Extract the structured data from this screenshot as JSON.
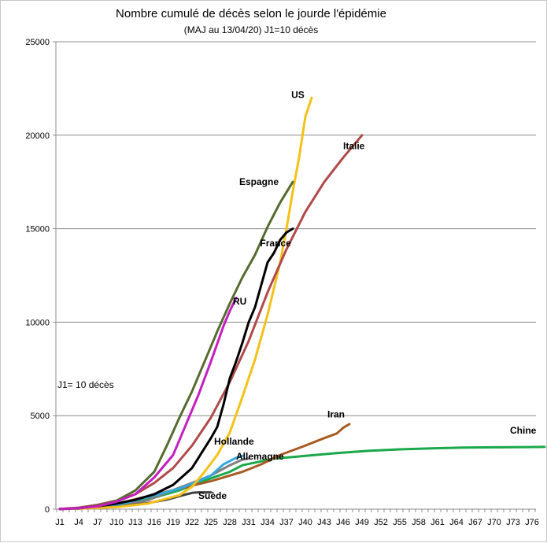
{
  "chart_data": {
    "type": "line",
    "title": "Nombre cumulé de décès selon le jourde l'épidémie",
    "subtitle": "(MAJ au 13/04/20) J1=10 décès",
    "annotation": "J1= 10 décès",
    "xlabel": "",
    "ylabel": "",
    "x_range": [
      1,
      78
    ],
    "ylim": [
      0,
      25000
    ],
    "yticks": [
      0,
      5000,
      10000,
      15000,
      20000,
      25000
    ],
    "xticks": [
      "J1",
      "J4",
      "J7",
      "J10",
      "J13",
      "J16",
      "J19",
      "J22",
      "J25",
      "J28",
      "J31",
      "J34",
      "J37",
      "J40",
      "J43",
      "J46",
      "J49",
      "J52",
      "J55",
      "J58",
      "J61",
      "J64",
      "J67",
      "J70",
      "J73",
      "J76"
    ],
    "xtick_days": [
      1,
      4,
      7,
      10,
      13,
      16,
      19,
      22,
      25,
      28,
      31,
      34,
      37,
      40,
      43,
      46,
      49,
      52,
      55,
      58,
      61,
      64,
      67,
      70,
      73,
      76
    ],
    "grid": "horizontal",
    "legend": "none (labels placed next to curves)",
    "series": [
      {
        "name": "Chine",
        "color": "#1aa84a",
        "x": [
          1,
          5,
          10,
          15,
          20,
          25,
          28,
          30,
          35,
          40,
          45,
          50,
          55,
          60,
          65,
          70,
          75,
          78
        ],
        "y": [
          10,
          60,
          200,
          520,
          1010,
          1650,
          2000,
          2350,
          2700,
          2850,
          3000,
          3120,
          3200,
          3250,
          3290,
          3310,
          3320,
          3330
        ]
      },
      {
        "name": "Iran",
        "color": "#a85c24",
        "x": [
          1,
          5,
          10,
          15,
          20,
          25,
          30,
          33,
          36,
          40,
          43,
          45,
          46,
          47
        ],
        "y": [
          10,
          60,
          280,
          700,
          1100,
          1500,
          2000,
          2400,
          2900,
          3400,
          3800,
          4050,
          4350,
          4550
        ]
      },
      {
        "name": "Allemagne",
        "color": "#7f7f7f",
        "x": [
          1,
          5,
          10,
          15,
          19,
          22,
          25,
          28,
          30,
          31
        ],
        "y": [
          10,
          40,
          150,
          480,
          1020,
          1400,
          1800,
          2350,
          2650,
          2700
        ]
      },
      {
        "name": "Hollande",
        "color": "#33aadd",
        "x": [
          1,
          5,
          10,
          15,
          20,
          22,
          25,
          27,
          29,
          30
        ],
        "y": [
          10,
          50,
          200,
          650,
          1100,
          1350,
          1800,
          2400,
          2750,
          2850
        ]
      },
      {
        "name": "Suède",
        "color": "#404040",
        "x": [
          1,
          5,
          10,
          15,
          18,
          20,
          22,
          23,
          25
        ],
        "y": [
          10,
          40,
          120,
          330,
          510,
          700,
          870,
          900,
          900
        ]
      },
      {
        "name": "US",
        "color": "#f5c118",
        "x": [
          1,
          5,
          10,
          15,
          20,
          22,
          24,
          26,
          28,
          30,
          32,
          34,
          36,
          37,
          38,
          39,
          40,
          41
        ],
        "y": [
          10,
          40,
          110,
          300,
          750,
          1200,
          2000,
          2900,
          4100,
          6000,
          8000,
          10400,
          13200,
          15000,
          17000,
          18800,
          21000,
          22000
        ]
      },
      {
        "name": "Italie",
        "color": "#b04a4a",
        "x": [
          1,
          4,
          7,
          10,
          13,
          16,
          19,
          22,
          25,
          28,
          31,
          34,
          37,
          40,
          43,
          46,
          49
        ],
        "y": [
          10,
          80,
          230,
          460,
          800,
          1400,
          2200,
          3400,
          4900,
          6800,
          9000,
          11600,
          13900,
          15900,
          17500,
          18800,
          20000
        ]
      },
      {
        "name": "Espagne",
        "color": "#556b2f",
        "x": [
          1,
          4,
          7,
          10,
          13,
          16,
          18,
          20,
          22,
          24,
          26,
          28,
          30,
          32,
          34,
          36,
          38
        ],
        "y": [
          10,
          60,
          180,
          450,
          1000,
          2000,
          3400,
          4900,
          6300,
          7900,
          9500,
          11000,
          12400,
          13600,
          15100,
          16400,
          17500
        ]
      },
      {
        "name": "France",
        "color": "#000000",
        "x": [
          1,
          4,
          7,
          10,
          13,
          16,
          19,
          22,
          25,
          26,
          27,
          28,
          29,
          30,
          31,
          32,
          33,
          34,
          35,
          36,
          37,
          38
        ],
        "y": [
          10,
          50,
          150,
          300,
          500,
          800,
          1300,
          2200,
          3800,
          4400,
          5600,
          7000,
          7900,
          8900,
          10000,
          10800,
          12000,
          13200,
          13700,
          14400,
          14800,
          15000
        ]
      },
      {
        "name": "RU",
        "color": "#c41fbf",
        "x": [
          1,
          4,
          7,
          10,
          13,
          16,
          19,
          21,
          23,
          25,
          27,
          28,
          29
        ],
        "y": [
          10,
          50,
          150,
          400,
          800,
          1700,
          2900,
          4500,
          6100,
          7900,
          9800,
          10600,
          11300
        ]
      }
    ]
  }
}
